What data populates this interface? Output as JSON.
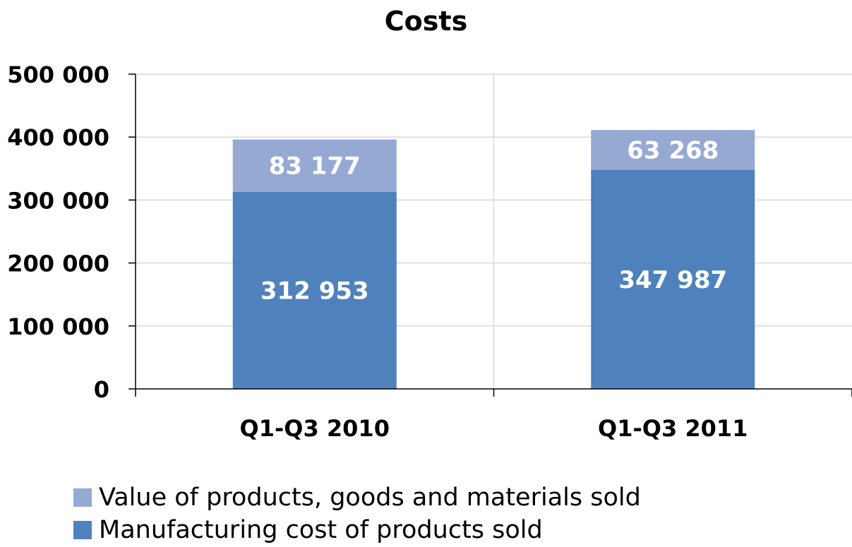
{
  "chart_data": {
    "type": "bar",
    "stacked": true,
    "title": "Costs",
    "categories": [
      "Q1-Q3 2010",
      "Q1-Q3 2011"
    ],
    "series": [
      {
        "name": "Manufacturing cost of products sold",
        "values": [
          312953,
          347987
        ],
        "labels": [
          "312 953",
          "347 987"
        ],
        "color": "#4F81BD"
      },
      {
        "name": "Value of products, goods and materials sold",
        "values": [
          83177,
          63268
        ],
        "labels": [
          "83 177",
          "63 268"
        ],
        "color": "#95A9D3"
      }
    ],
    "ylim": [
      0,
      500000
    ],
    "yticks": [
      0,
      100000,
      200000,
      300000,
      400000,
      500000
    ],
    "ytick_labels": [
      "0",
      "100 000",
      "200 000",
      "300 000",
      "400 000",
      "500 000"
    ],
    "grid": true,
    "legend_position": "bottom",
    "legend": [
      {
        "label": "Value of products, goods and materials sold",
        "color": "#95A9D3"
      },
      {
        "label": "Manufacturing cost of products sold",
        "color": "#4F81BD"
      }
    ]
  }
}
